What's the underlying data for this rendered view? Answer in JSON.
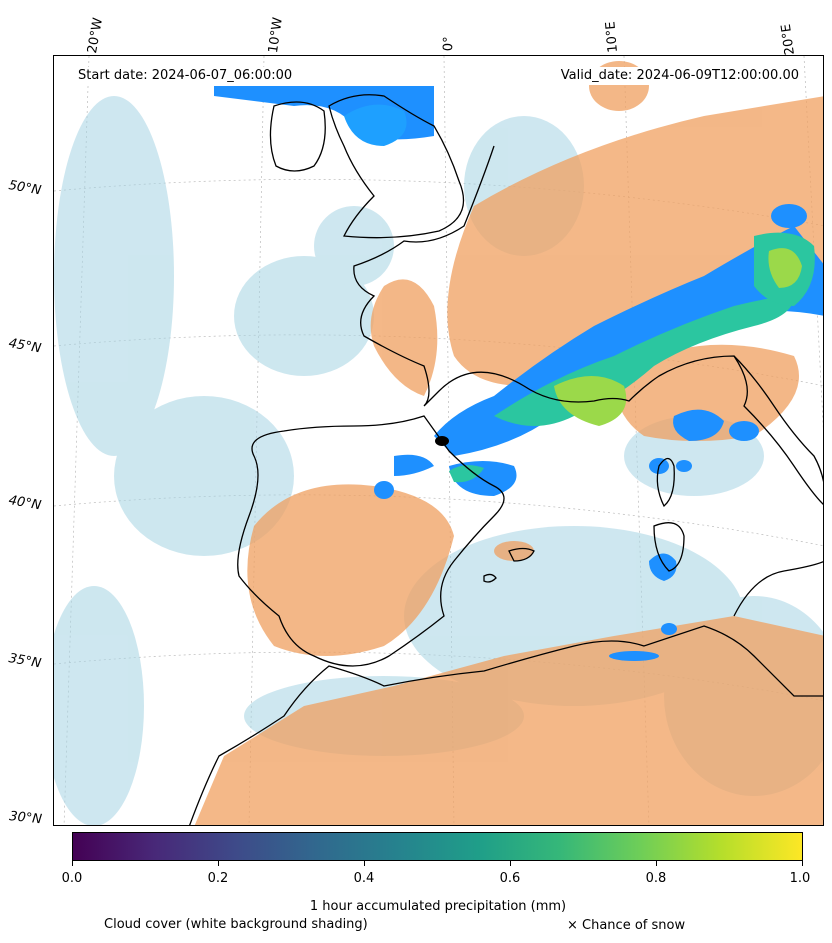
{
  "map": {
    "start_date": "Start date: 2024-06-07_06:00:00",
    "valid_date": "Valid_date: 2024-06-09T12:00:00.00",
    "longitude_labels": [
      "20°W",
      "10°W",
      "0°",
      "10°E",
      "20°E"
    ],
    "latitude_labels": [
      "50°N",
      "45°N",
      "40°N",
      "35°N",
      "30°N"
    ],
    "colors": {
      "cloud": "#a6d4e3",
      "land_dry": "#f0a060",
      "precip_light": "#1e90ff",
      "precip_mid": "#2bc6a0",
      "precip_high": "#9bd94a",
      "coast": "#000000"
    }
  },
  "colorbar": {
    "label": "1 hour accumulated precipitation (mm)",
    "ticks": [
      "0.0",
      "0.2",
      "0.4",
      "0.6",
      "0.8",
      "1.0"
    ],
    "range": [
      0.0,
      1.0
    ],
    "colormap": "viridis"
  },
  "legend": {
    "cloud_note": "Cloud cover (white background shading)",
    "snow_note": "× Chance of snow"
  }
}
